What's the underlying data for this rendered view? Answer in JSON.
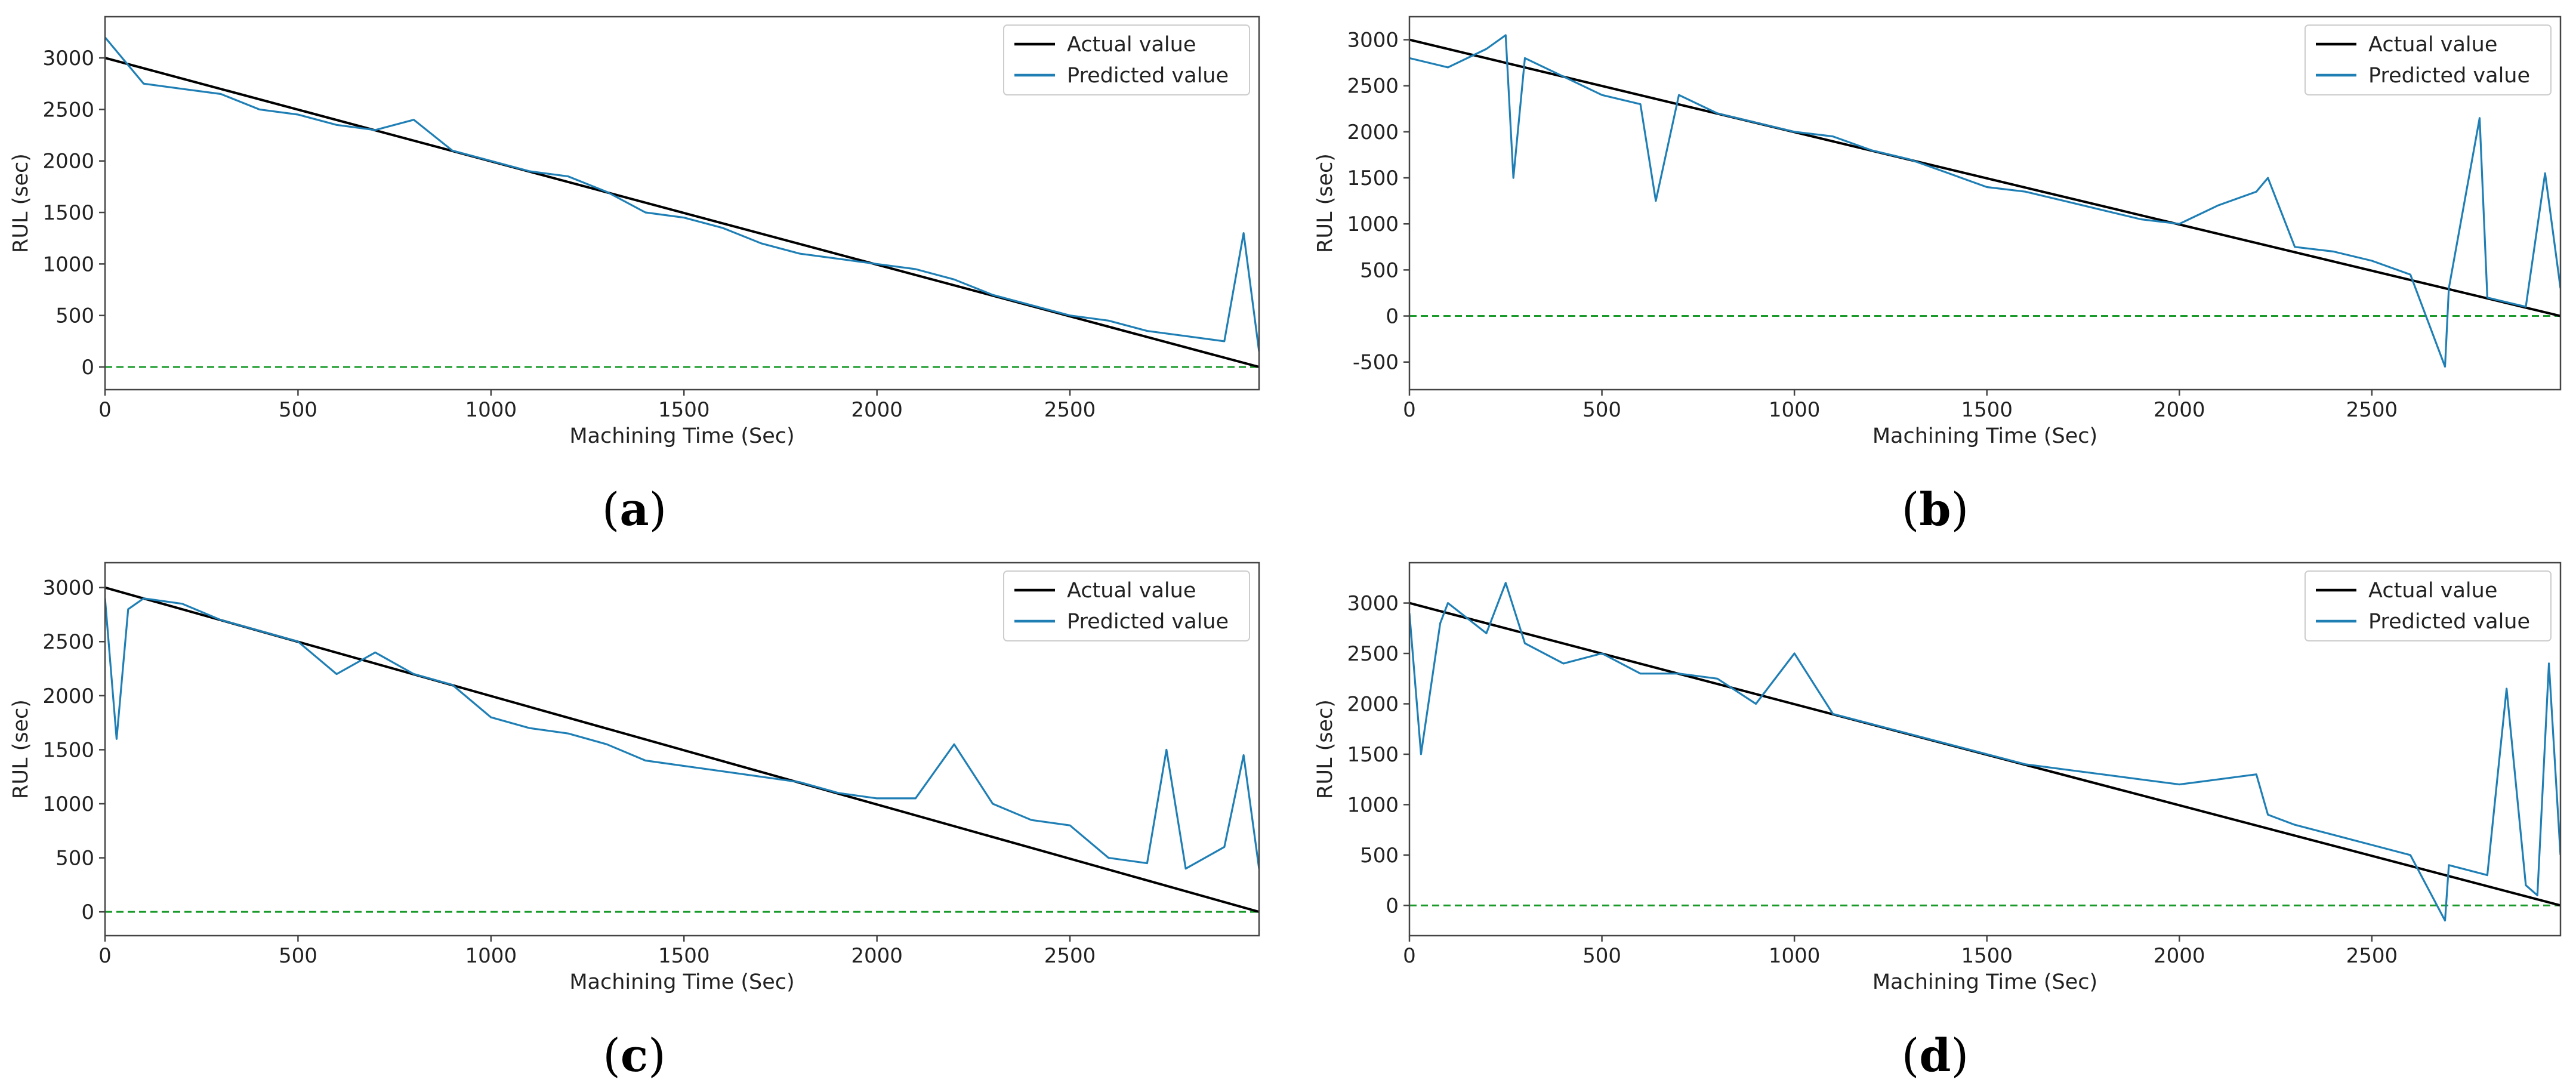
{
  "colors": {
    "actual": "#000000",
    "predicted": "#1f7fb5",
    "zero_line": "#1a9a2a",
    "axes": "#444444"
  },
  "chart_data": [
    {
      "type": "line",
      "panel": "a",
      "panel_label": {
        "open": "(",
        "letter": "a",
        "close": ")"
      },
      "xlabel": "Machining Time (Sec)",
      "ylabel": "RUL (sec)",
      "xlim": [
        0,
        2990
      ],
      "ylim": [
        -220,
        3400
      ],
      "xticks": [
        0,
        500,
        1000,
        1500,
        2000,
        2500
      ],
      "yticks": [
        0,
        500,
        1000,
        1500,
        2000,
        2500,
        3000
      ],
      "legend_position": "top-right",
      "series": [
        {
          "name": "Actual value",
          "role": "actual",
          "x": [
            0,
            2990
          ],
          "values": [
            3000,
            0
          ]
        },
        {
          "name": "Predicted value",
          "role": "predicted",
          "x": [
            0,
            100,
            200,
            300,
            400,
            500,
            600,
            700,
            800,
            900,
            1000,
            1100,
            1200,
            1300,
            1400,
            1500,
            1600,
            1700,
            1800,
            1900,
            2000,
            2100,
            2200,
            2300,
            2400,
            2500,
            2600,
            2700,
            2800,
            2900,
            2950,
            2990
          ],
          "values": [
            3200,
            2750,
            2700,
            2650,
            2500,
            2450,
            2350,
            2300,
            2400,
            2100,
            2000,
            1900,
            1850,
            1700,
            1500,
            1450,
            1350,
            1200,
            1100,
            1050,
            1000,
            950,
            850,
            700,
            600,
            500,
            450,
            350,
            300,
            250,
            1300,
            150
          ]
        }
      ]
    },
    {
      "type": "line",
      "panel": "b",
      "panel_label": {
        "open": "(",
        "letter": "b",
        "close": ")"
      },
      "xlabel": "Machining Time (Sec)",
      "ylabel": "RUL (sec)",
      "xlim": [
        0,
        2990
      ],
      "ylim": [
        -800,
        3250
      ],
      "xticks": [
        0,
        500,
        1000,
        1500,
        2000,
        2500
      ],
      "yticks": [
        -500,
        0,
        500,
        1000,
        1500,
        2000,
        2500,
        3000
      ],
      "legend_position": "top-right",
      "series": [
        {
          "name": "Actual value",
          "role": "actual",
          "x": [
            0,
            2990
          ],
          "values": [
            3000,
            0
          ]
        },
        {
          "name": "Predicted value",
          "role": "predicted",
          "x": [
            0,
            100,
            200,
            250,
            270,
            300,
            400,
            500,
            600,
            640,
            700,
            800,
            900,
            1000,
            1100,
            1200,
            1300,
            1400,
            1500,
            1600,
            1700,
            1800,
            1900,
            2000,
            2100,
            2200,
            2230,
            2300,
            2400,
            2500,
            2600,
            2690,
            2700,
            2780,
            2800,
            2900,
            2950,
            2990
          ],
          "values": [
            2800,
            2700,
            2900,
            3050,
            1500,
            2800,
            2600,
            2400,
            2300,
            1250,
            2400,
            2200,
            2100,
            2000,
            1950,
            1800,
            1700,
            1550,
            1400,
            1350,
            1250,
            1150,
            1050,
            1000,
            1200,
            1350,
            1500,
            750,
            700,
            600,
            450,
            -550,
            300,
            2150,
            200,
            100,
            1550,
            300
          ]
        }
      ]
    },
    {
      "type": "line",
      "panel": "c",
      "panel_label": {
        "open": "(",
        "letter": "c",
        "close": ")"
      },
      "xlabel": "Machining Time (Sec)",
      "ylabel": "RUL (sec)",
      "xlim": [
        0,
        2990
      ],
      "ylim": [
        -220,
        3230
      ],
      "xticks": [
        0,
        500,
        1000,
        1500,
        2000,
        2500
      ],
      "yticks": [
        0,
        500,
        1000,
        1500,
        2000,
        2500,
        3000
      ],
      "legend_position": "top-right",
      "series": [
        {
          "name": "Actual value",
          "role": "actual",
          "x": [
            0,
            2990
          ],
          "values": [
            3000,
            0
          ]
        },
        {
          "name": "Predicted value",
          "role": "predicted",
          "x": [
            0,
            30,
            60,
            100,
            200,
            300,
            400,
            500,
            600,
            700,
            800,
            900,
            1000,
            1100,
            1200,
            1300,
            1400,
            1500,
            1600,
            1700,
            1800,
            1900,
            2000,
            2100,
            2200,
            2300,
            2400,
            2500,
            2600,
            2700,
            2750,
            2800,
            2900,
            2950,
            2990
          ],
          "values": [
            2900,
            1600,
            2800,
            2900,
            2850,
            2700,
            2600,
            2500,
            2200,
            2400,
            2200,
            2100,
            1800,
            1700,
            1650,
            1550,
            1400,
            1350,
            1300,
            1250,
            1200,
            1100,
            1050,
            1050,
            1550,
            1000,
            850,
            800,
            500,
            450,
            1500,
            400,
            600,
            1450,
            400
          ]
        }
      ]
    },
    {
      "type": "line",
      "panel": "d",
      "panel_label": {
        "open": "(",
        "letter": "d",
        "close": ")"
      },
      "xlabel": "Machining Time (Sec)",
      "ylabel": "RUL (sec)",
      "xlim": [
        0,
        2990
      ],
      "ylim": [
        -300,
        3400
      ],
      "xticks": [
        0,
        500,
        1000,
        1500,
        2000,
        2500
      ],
      "yticks": [
        0,
        500,
        1000,
        1500,
        2000,
        2500,
        3000
      ],
      "legend_position": "top-right",
      "series": [
        {
          "name": "Actual value",
          "role": "actual",
          "x": [
            0,
            2990
          ],
          "values": [
            3000,
            0
          ]
        },
        {
          "name": "Predicted value",
          "role": "predicted",
          "x": [
            0,
            30,
            80,
            100,
            200,
            250,
            300,
            400,
            500,
            600,
            700,
            800,
            900,
            1000,
            1100,
            1200,
            1300,
            1400,
            1500,
            1600,
            1700,
            1800,
            1900,
            2000,
            2100,
            2200,
            2230,
            2300,
            2400,
            2500,
            2600,
            2690,
            2700,
            2800,
            2850,
            2900,
            2930,
            2960,
            2990
          ],
          "values": [
            2900,
            1500,
            2800,
            3000,
            2700,
            3200,
            2600,
            2400,
            2500,
            2300,
            2300,
            2250,
            2000,
            2500,
            1900,
            1800,
            1700,
            1600,
            1500,
            1400,
            1350,
            1300,
            1250,
            1200,
            1250,
            1300,
            900,
            800,
            700,
            600,
            500,
            -150,
            400,
            300,
            2150,
            200,
            100,
            2400,
            500
          ]
        }
      ]
    }
  ]
}
